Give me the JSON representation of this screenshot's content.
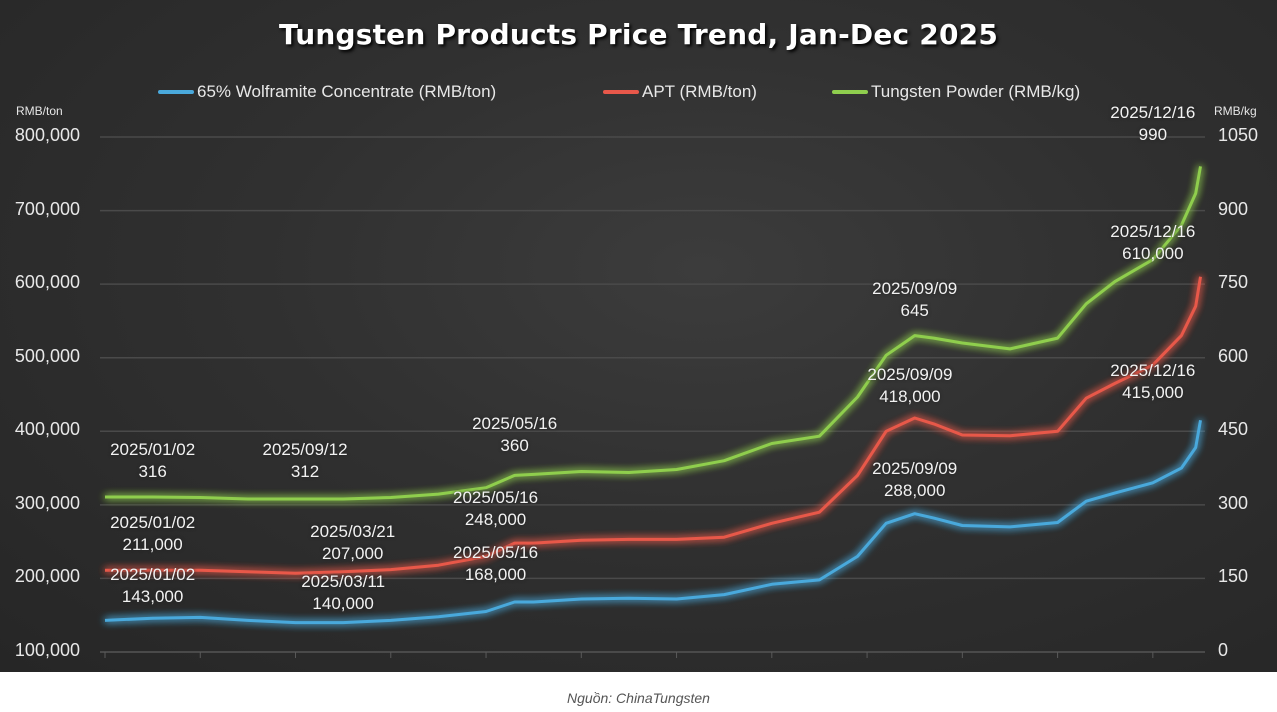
{
  "chart_data": {
    "type": "line",
    "title": "Tungsten Products Price Trend, Jan-Dec 2025",
    "left_axis": {
      "unit": "RMB/ton",
      "ylim": [
        100000,
        800000
      ],
      "ticks": [
        "100,000",
        "200,000",
        "300,000",
        "400,000",
        "500,000",
        "600,000",
        "700,000",
        "800,000"
      ],
      "tick_values": [
        100000,
        200000,
        300000,
        400000,
        500000,
        600000,
        700000,
        800000
      ]
    },
    "right_axis": {
      "unit": "RMB/kg",
      "ylim": [
        0,
        1050
      ],
      "ticks": [
        "0",
        "150",
        "300",
        "450",
        "600",
        "750",
        "900",
        "1050"
      ],
      "tick_values": [
        0,
        150,
        300,
        450,
        600,
        750,
        900,
        1050
      ]
    },
    "x_range": [
      0,
      11.6
    ],
    "grid": true,
    "legend_position": "top",
    "series": [
      {
        "name": "65% Wolframite Concentrate (RMB/ton)",
        "axis": "left",
        "color": "#4aa9dc",
        "x": [
          0,
          0.5,
          1.0,
          1.5,
          2.0,
          2.5,
          3.0,
          3.5,
          4.0,
          4.3,
          4.5,
          5.0,
          5.5,
          6.0,
          6.5,
          7.0,
          7.5,
          7.9,
          8.2,
          8.5,
          8.7,
          9.0,
          9.5,
          10.0,
          10.3,
          10.6,
          11.0,
          11.3,
          11.45,
          11.5
        ],
        "values": [
          143000,
          146000,
          147000,
          143000,
          140000,
          140000,
          143000,
          148000,
          155000,
          168000,
          168000,
          172000,
          173000,
          172000,
          178000,
          192000,
          198000,
          230000,
          275000,
          288000,
          282000,
          272000,
          270000,
          276000,
          305000,
          316000,
          330000,
          350000,
          378000,
          415000
        ]
      },
      {
        "name": "APT (RMB/ton)",
        "axis": "left",
        "color": "#e8584a",
        "x": [
          0,
          0.5,
          1.0,
          1.5,
          2.0,
          2.5,
          3.0,
          3.5,
          4.0,
          4.3,
          4.5,
          5.0,
          5.5,
          6.0,
          6.5,
          7.0,
          7.5,
          7.9,
          8.2,
          8.5,
          8.7,
          9.0,
          9.5,
          10.0,
          10.3,
          10.6,
          11.0,
          11.3,
          11.45,
          11.5
        ],
        "values": [
          211000,
          211000,
          211000,
          209000,
          207000,
          209000,
          212000,
          218000,
          230000,
          248000,
          248000,
          252000,
          253000,
          253000,
          256000,
          275000,
          290000,
          340000,
          400000,
          418000,
          410000,
          395000,
          394000,
          400000,
          445000,
          465000,
          490000,
          530000,
          570000,
          610000
        ]
      },
      {
        "name": "Tungsten Powder (RMB/kg)",
        "axis": "right",
        "color": "#8fce4e",
        "x": [
          0,
          0.5,
          1.0,
          1.5,
          2.0,
          2.5,
          3.0,
          3.5,
          4.0,
          4.3,
          4.5,
          5.0,
          5.5,
          6.0,
          6.5,
          7.0,
          7.5,
          7.9,
          8.2,
          8.5,
          8.7,
          9.0,
          9.5,
          10.0,
          10.3,
          10.6,
          11.0,
          11.3,
          11.45,
          11.5
        ],
        "values": [
          316,
          316,
          315,
          312,
          312,
          312,
          315,
          322,
          335,
          360,
          362,
          368,
          366,
          372,
          390,
          425,
          440,
          520,
          605,
          645,
          640,
          630,
          618,
          640,
          710,
          755,
          800,
          870,
          935,
          990
        ]
      }
    ],
    "annotations": [
      {
        "series": 2,
        "date": "2025/01/02",
        "value": "316",
        "x": 0.5
      },
      {
        "series": 2,
        "date": "2025/09/12",
        "value": "312",
        "x": 2.1
      },
      {
        "series": 2,
        "date": "2025/05/16",
        "value": "360",
        "x": 4.3
      },
      {
        "series": 2,
        "date": "2025/09/09",
        "value": "645",
        "x": 8.5
      },
      {
        "series": 2,
        "date": "2025/12/16",
        "value": "990",
        "x": 11.0
      },
      {
        "series": 1,
        "date": "2025/01/02",
        "value": "211,000",
        "x": 0.5
      },
      {
        "series": 1,
        "date": "2025/03/21",
        "value": "207,000",
        "x": 2.6
      },
      {
        "series": 1,
        "date": "2025/05/16",
        "value": "248,000",
        "x": 4.1
      },
      {
        "series": 1,
        "date": "2025/09/09",
        "value": "418,000",
        "x": 8.45
      },
      {
        "series": 1,
        "date": "2025/12/16",
        "value": "610,000",
        "x": 11.0
      },
      {
        "series": 0,
        "date": "2025/01/02",
        "value": "143,000",
        "x": 0.5
      },
      {
        "series": 0,
        "date": "2025/03/11",
        "value": "140,000",
        "x": 2.5
      },
      {
        "series": 0,
        "date": "2025/05/16",
        "value": "168,000",
        "x": 4.1
      },
      {
        "series": 0,
        "date": "2025/09/09",
        "value": "288,000",
        "x": 8.5
      },
      {
        "series": 0,
        "date": "2025/12/16",
        "value": "415,000",
        "x": 11.0
      }
    ],
    "annotation_values_numeric": [
      316,
      312,
      360,
      645,
      990,
      211000,
      207000,
      248000,
      418000,
      610000,
      143000,
      140000,
      168000,
      288000,
      415000
    ]
  },
  "source": "Nguồn: ChinaTungsten"
}
